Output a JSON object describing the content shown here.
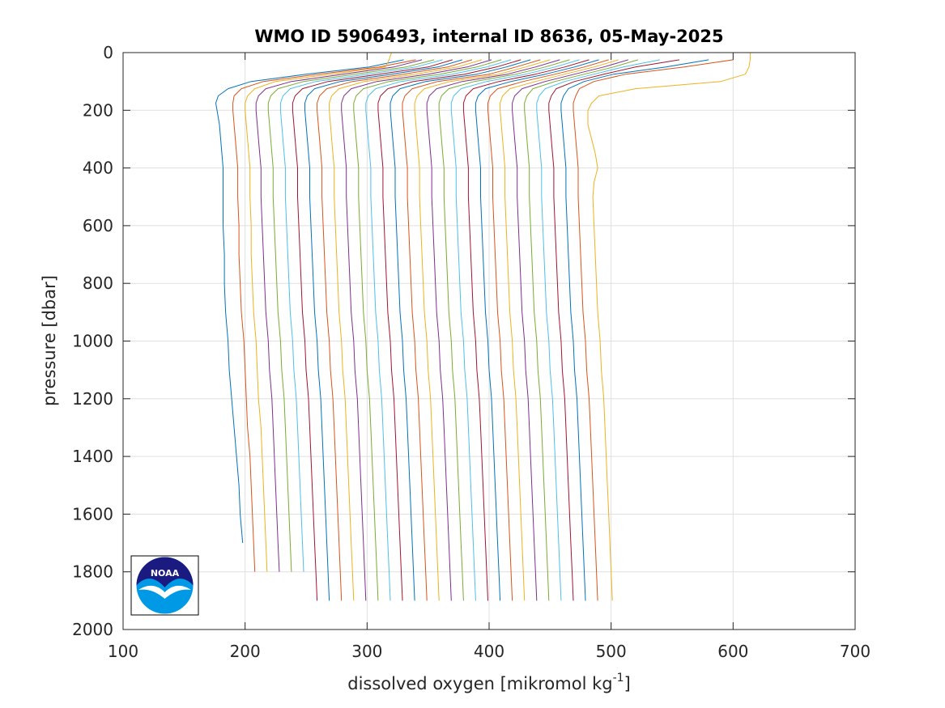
{
  "chart_data": {
    "type": "line",
    "title": "WMO ID 5906493, internal ID 8636, 05-May-2025",
    "xlabel_main": "dissolved oxygen [mikromol kg",
    "xlabel_sup": "-1",
    "xlabel_end": "]",
    "ylabel": "pressure [dbar]",
    "xlim": [
      100,
      700
    ],
    "ylim": [
      0,
      2000
    ],
    "y_reversed": true,
    "grid": true,
    "x_ticks": [
      "100",
      "200",
      "300",
      "400",
      "500",
      "600",
      "700"
    ],
    "y_ticks": [
      "0",
      "200",
      "400",
      "600",
      "800",
      "1000",
      "1200",
      "1400",
      "1600",
      "1800",
      "2000"
    ],
    "profile_pressures": [
      0,
      25,
      50,
      75,
      100,
      125,
      150,
      175,
      200,
      250,
      300,
      350,
      400,
      450,
      500,
      600,
      700,
      800,
      900,
      1000,
      1100,
      1200,
      1300,
      1400,
      1500,
      1600,
      1700,
      1800,
      1900
    ],
    "series": [
      {
        "color": "#0072BD",
        "values": [
          null,
          330,
          302,
          250,
          205,
          186,
          178,
          176,
          177,
          179,
          180,
          181,
          182,
          182,
          182,
          182,
          183,
          183,
          184,
          186,
          187,
          189,
          191,
          193,
          195,
          196,
          198,
          null,
          null
        ]
      },
      {
        "color": "#D95319",
        "values": [
          null,
          340,
          310,
          260,
          215,
          197,
          191,
          190,
          190,
          191,
          192,
          193,
          194,
          194,
          194,
          195,
          195,
          196,
          197,
          199,
          200,
          201,
          202,
          204,
          205,
          206,
          207,
          208,
          null
        ]
      },
      {
        "color": "#EDB120",
        "values": [
          320,
          318,
          315,
          270,
          225,
          208,
          202,
          200,
          200,
          201,
          202,
          203,
          204,
          204,
          204,
          205,
          205,
          206,
          207,
          209,
          210,
          211,
          213,
          214,
          215,
          216,
          217,
          218,
          null
        ]
      },
      {
        "color": "#7E2F8E",
        "values": [
          null,
          345,
          322,
          280,
          238,
          217,
          211,
          209,
          209,
          210,
          211,
          212,
          213,
          213,
          213,
          214,
          215,
          216,
          217,
          219,
          220,
          222,
          223,
          224,
          225,
          226,
          227,
          228,
          null
        ]
      },
      {
        "color": "#77AC30",
        "values": [
          null,
          355,
          332,
          290,
          248,
          227,
          221,
          219,
          219,
          220,
          221,
          222,
          223,
          223,
          223,
          224,
          225,
          226,
          227,
          229,
          230,
          232,
          233,
          234,
          235,
          236,
          237,
          238,
          null
        ]
      },
      {
        "color": "#4DBEEE",
        "values": [
          null,
          362,
          340,
          300,
          258,
          237,
          231,
          229,
          229,
          230,
          231,
          232,
          233,
          233,
          233,
          234,
          235,
          236,
          237,
          239,
          240,
          242,
          243,
          244,
          245,
          246,
          247,
          248,
          null
        ]
      },
      {
        "color": "#A2142F",
        "values": [
          null,
          370,
          350,
          310,
          268,
          247,
          241,
          239,
          239,
          240,
          241,
          242,
          243,
          243,
          243,
          244,
          245,
          246,
          247,
          249,
          250,
          252,
          253,
          254,
          255,
          256,
          257,
          258,
          259
        ]
      },
      {
        "color": "#0072BD",
        "values": [
          null,
          378,
          358,
          320,
          278,
          257,
          251,
          249,
          249,
          250,
          251,
          252,
          253,
          253,
          253,
          254,
          255,
          256,
          257,
          259,
          260,
          262,
          263,
          264,
          265,
          266,
          267,
          268,
          269
        ]
      },
      {
        "color": "#D95319",
        "values": [
          null,
          386,
          366,
          330,
          288,
          267,
          261,
          259,
          259,
          260,
          261,
          262,
          263,
          263,
          263,
          264,
          265,
          266,
          267,
          269,
          270,
          272,
          273,
          274,
          275,
          276,
          277,
          278,
          279
        ]
      },
      {
        "color": "#EDB120",
        "values": [
          null,
          394,
          374,
          340,
          298,
          277,
          271,
          269,
          269,
          270,
          271,
          272,
          273,
          273,
          273,
          274,
          275,
          276,
          277,
          279,
          280,
          282,
          283,
          284,
          285,
          286,
          287,
          288,
          289
        ]
      },
      {
        "color": "#7E2F8E",
        "values": [
          null,
          402,
          382,
          350,
          308,
          287,
          281,
          279,
          279,
          280,
          281,
          282,
          283,
          283,
          283,
          284,
          285,
          286,
          287,
          289,
          290,
          292,
          293,
          294,
          295,
          296,
          297,
          298,
          299
        ]
      },
      {
        "color": "#77AC30",
        "values": [
          null,
          410,
          390,
          360,
          318,
          297,
          291,
          289,
          289,
          290,
          291,
          292,
          293,
          293,
          293,
          294,
          295,
          296,
          297,
          299,
          300,
          302,
          303,
          304,
          305,
          306,
          307,
          308,
          309
        ]
      },
      {
        "color": "#4DBEEE",
        "values": [
          null,
          418,
          398,
          370,
          328,
          307,
          301,
          299,
          299,
          300,
          301,
          302,
          303,
          303,
          303,
          304,
          305,
          306,
          307,
          309,
          310,
          312,
          313,
          314,
          315,
          316,
          317,
          318,
          319
        ]
      },
      {
        "color": "#A2142F",
        "values": [
          null,
          426,
          406,
          380,
          338,
          317,
          311,
          309,
          309,
          310,
          311,
          312,
          313,
          313,
          313,
          314,
          315,
          316,
          317,
          319,
          320,
          322,
          323,
          324,
          325,
          326,
          327,
          328,
          329
        ]
      },
      {
        "color": "#0072BD",
        "values": [
          null,
          434,
          414,
          390,
          348,
          327,
          321,
          319,
          319,
          320,
          321,
          322,
          323,
          323,
          323,
          324,
          325,
          326,
          327,
          329,
          330,
          332,
          333,
          334,
          335,
          336,
          337,
          338,
          339
        ]
      },
      {
        "color": "#D95319",
        "values": [
          null,
          442,
          422,
          400,
          358,
          337,
          331,
          329,
          329,
          330,
          331,
          332,
          333,
          333,
          333,
          334,
          335,
          336,
          337,
          339,
          340,
          342,
          343,
          344,
          345,
          346,
          347,
          348,
          349
        ]
      },
      {
        "color": "#EDB120",
        "values": [
          null,
          450,
          430,
          408,
          368,
          347,
          341,
          339,
          339,
          340,
          341,
          342,
          343,
          343,
          343,
          344,
          345,
          346,
          347,
          349,
          350,
          352,
          353,
          354,
          355,
          356,
          357,
          358,
          359
        ]
      },
      {
        "color": "#7E2F8E",
        "values": [
          null,
          458,
          438,
          415,
          378,
          357,
          351,
          349,
          349,
          350,
          351,
          352,
          353,
          353,
          353,
          354,
          355,
          356,
          357,
          359,
          360,
          362,
          363,
          364,
          365,
          366,
          367,
          368,
          369
        ]
      },
      {
        "color": "#77AC30",
        "values": [
          null,
          466,
          446,
          422,
          388,
          367,
          361,
          359,
          359,
          360,
          361,
          362,
          363,
          363,
          363,
          364,
          365,
          366,
          367,
          369,
          370,
          372,
          373,
          374,
          375,
          376,
          377,
          378,
          379
        ]
      },
      {
        "color": "#4DBEEE",
        "values": [
          null,
          474,
          454,
          430,
          398,
          377,
          371,
          369,
          369,
          370,
          371,
          372,
          373,
          373,
          373,
          374,
          375,
          376,
          377,
          379,
          380,
          382,
          383,
          384,
          385,
          386,
          387,
          388,
          389
        ]
      },
      {
        "color": "#A2142F",
        "values": [
          null,
          482,
          462,
          438,
          408,
          387,
          381,
          379,
          379,
          380,
          381,
          382,
          383,
          383,
          383,
          384,
          385,
          386,
          387,
          389,
          390,
          392,
          393,
          394,
          395,
          396,
          397,
          398,
          399
        ]
      },
      {
        "color": "#0072BD",
        "values": [
          null,
          490,
          470,
          446,
          418,
          397,
          391,
          389,
          389,
          390,
          391,
          392,
          393,
          393,
          393,
          394,
          395,
          396,
          397,
          399,
          400,
          402,
          403,
          404,
          405,
          406,
          407,
          408,
          409
        ]
      },
      {
        "color": "#D95319",
        "values": [
          null,
          498,
          478,
          454,
          428,
          407,
          401,
          399,
          399,
          400,
          401,
          402,
          403,
          403,
          403,
          404,
          405,
          406,
          407,
          409,
          410,
          412,
          413,
          414,
          415,
          416,
          417,
          418,
          419
        ]
      },
      {
        "color": "#EDB120",
        "values": [
          null,
          506,
          486,
          462,
          438,
          417,
          411,
          409,
          409,
          410,
          411,
          412,
          413,
          413,
          413,
          414,
          415,
          416,
          417,
          419,
          420,
          422,
          423,
          424,
          425,
          426,
          427,
          428,
          429
        ]
      },
      {
        "color": "#7E2F8E",
        "values": [
          null,
          514,
          494,
          470,
          446,
          427,
          421,
          419,
          419,
          420,
          421,
          422,
          423,
          423,
          423,
          424,
          425,
          426,
          427,
          429,
          430,
          432,
          433,
          434,
          435,
          436,
          437,
          438,
          439
        ]
      },
      {
        "color": "#77AC30",
        "values": [
          null,
          522,
          502,
          478,
          454,
          436,
          431,
          429,
          429,
          430,
          431,
          432,
          433,
          433,
          433,
          434,
          435,
          436,
          437,
          439,
          440,
          442,
          443,
          444,
          445,
          446,
          447,
          448,
          449
        ]
      },
      {
        "color": "#4DBEEE",
        "values": [
          null,
          540,
          510,
          486,
          462,
          446,
          441,
          439,
          439,
          440,
          441,
          442,
          443,
          443,
          443,
          444,
          445,
          446,
          447,
          449,
          450,
          452,
          453,
          454,
          455,
          456,
          457,
          458,
          459
        ]
      },
      {
        "color": "#A2142F",
        "values": [
          null,
          556,
          520,
          494,
          470,
          455,
          451,
          449,
          449,
          450,
          451,
          452,
          453,
          453,
          453,
          454,
          455,
          456,
          457,
          459,
          460,
          462,
          463,
          464,
          465,
          466,
          467,
          468,
          469
        ]
      },
      {
        "color": "#0072BD",
        "values": [
          null,
          580,
          545,
          502,
          478,
          465,
          461,
          459,
          459,
          460,
          461,
          462,
          463,
          463,
          463,
          464,
          465,
          466,
          467,
          469,
          470,
          472,
          473,
          474,
          475,
          476,
          477,
          478,
          479
        ]
      },
      {
        "color": "#D95319",
        "values": [
          null,
          600,
          560,
          512,
          486,
          474,
          471,
          469,
          469,
          470,
          471,
          472,
          473,
          473,
          473,
          474,
          475,
          476,
          477,
          479,
          480,
          482,
          483,
          484,
          485,
          486,
          487,
          488,
          489
        ]
      },
      {
        "color": "#EDB120",
        "values": [
          614,
          614,
          613,
          610,
          590,
          520,
          490,
          484,
          481,
          481,
          484,
          487,
          489,
          486,
          485,
          486,
          487,
          488,
          489,
          491,
          492,
          494,
          495,
          496,
          497,
          498,
          499,
          500,
          501
        ]
      }
    ]
  },
  "logo": {
    "text": "NOAA"
  }
}
